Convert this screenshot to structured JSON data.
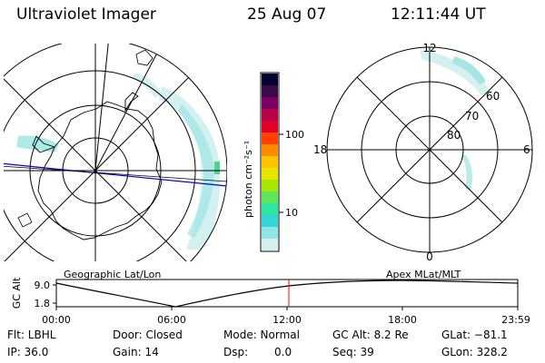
{
  "header": {
    "instrument": "Ultraviolet Imager",
    "date": "25 Aug 07",
    "time": "12:11:44 UT"
  },
  "colorbar": {
    "unit_label": "photon cm⁻²s⁻¹",
    "tick_labels": [
      "100",
      "10"
    ],
    "colors": [
      "#000033",
      "#3a0a4a",
      "#7a0066",
      "#b8004a",
      "#e0002a",
      "#ff4000",
      "#ff8a00",
      "#ffc400",
      "#e6e600",
      "#a6e600",
      "#5be65b",
      "#2ee6a0",
      "#33d6d6",
      "#8fe6e6",
      "#d6f0f0"
    ]
  },
  "left_map": {
    "caption": "Geographic Lat/Lon"
  },
  "right_map": {
    "caption": "Apex MLat/MLT",
    "mlt_labels": {
      "top": "12",
      "bottom": "0",
      "left": "18",
      "right": "6"
    },
    "lat_labels": [
      "60",
      "70",
      "80"
    ]
  },
  "altitude_plot": {
    "ylabel": "GC Alt",
    "y_ticks": [
      "9.0",
      "1.8"
    ],
    "x_ticks": [
      "00:00",
      "06:00",
      "12:00",
      "18:00",
      "23:59"
    ],
    "current_time_marker": "12:11",
    "marker_color": "#ff0000"
  },
  "status": {
    "flt": "Flt: LBHL",
    "door": "Door: Closed",
    "mode": "Mode: Normal",
    "gc_alt": "GC Alt: 8.2 Re",
    "glat": "GLat: −81.1",
    "ip": "IP: 36.0",
    "gain": "Gain: 14",
    "dsp_label": "Dsp:",
    "dsp_value": "0.0",
    "seq": "Seq: 39",
    "glon": "GLon: 328.2"
  }
}
